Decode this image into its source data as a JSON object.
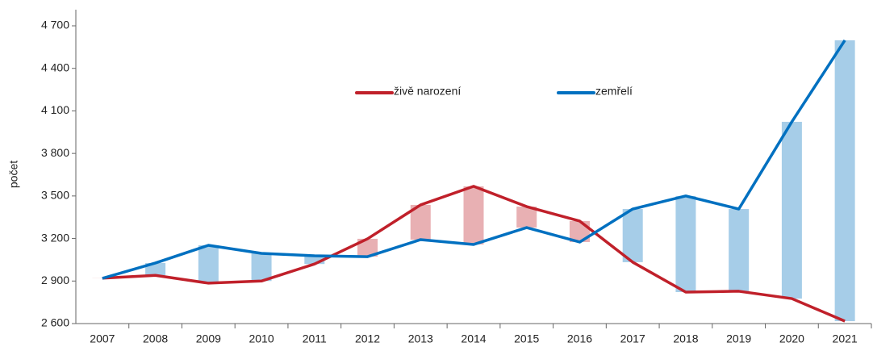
{
  "chart_data": {
    "type": "line",
    "y_label": "počet",
    "categories": [
      "2007",
      "2008",
      "2009",
      "2010",
      "2011",
      "2012",
      "2013",
      "2014",
      "2015",
      "2016",
      "2017",
      "2018",
      "2019",
      "2020",
      "2021"
    ],
    "series": [
      {
        "name": "živě narození",
        "color": "#c0202a",
        "values": [
          2920,
          2940,
          2885,
          2900,
          3020,
          3198,
          3437,
          3568,
          3425,
          3323,
          3033,
          2822,
          2828,
          2776,
          2617
        ]
      },
      {
        "name": "zemřelí",
        "color": "#0070c0",
        "values": [
          2919,
          3027,
          3152,
          3095,
          3078,
          3072,
          3192,
          3158,
          3277,
          3175,
          3408,
          3500,
          3408,
          4023,
          4598
        ]
      }
    ],
    "difference_colors": {
      "deaths_higher": "#a6cde8",
      "births_higher": "#e8b0b3"
    },
    "ylim": [
      2600,
      4700
    ],
    "yticks": [
      {
        "value": 2600,
        "label": "2 600"
      },
      {
        "value": 2900,
        "label": "2 900"
      },
      {
        "value": 3200,
        "label": "3 200"
      },
      {
        "value": 3500,
        "label": "3 500"
      },
      {
        "value": 3800,
        "label": "3 800"
      },
      {
        "value": 4100,
        "label": "4 100"
      },
      {
        "value": 4400,
        "label": "4 400"
      },
      {
        "value": 4700,
        "label": "4 700"
      }
    ],
    "legend": "top-center",
    "grid": false
  }
}
